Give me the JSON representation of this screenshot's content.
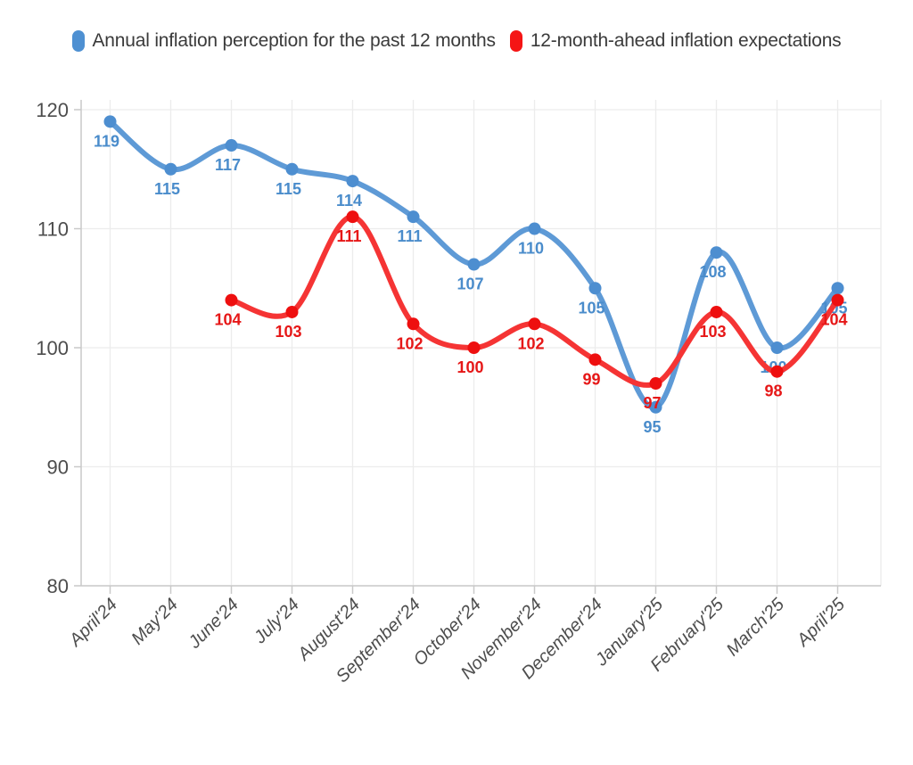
{
  "legend": {
    "items": [
      {
        "label": "Annual inflation perception for the past 12 months",
        "color": "#4e90d2"
      },
      {
        "label": "12-month-ahead inflation expectations",
        "color": "#f51515"
      }
    ]
  },
  "chart_data": {
    "type": "line",
    "title": "",
    "xlabel": "",
    "ylabel": "",
    "categories": [
      "April'24",
      "May'24",
      "June'24",
      "July'24",
      "August'24",
      "September'24",
      "October'24",
      "November'24",
      "December'24",
      "January'25",
      "February'25",
      "March'25",
      "April'25"
    ],
    "series": [
      {
        "name": "Annual inflation perception for the past 12 months",
        "values": [
          119,
          115,
          117,
          115,
          114,
          111,
          107,
          110,
          105,
          95,
          108,
          100,
          105
        ],
        "line_color": "#5e9ad6",
        "point_color": "#4d8ed0",
        "label_color": "#4a8ccb"
      },
      {
        "name": "12-month-ahead inflation expectations",
        "values": [
          null,
          null,
          104,
          103,
          111,
          102,
          100,
          102,
          99,
          97,
          103,
          98,
          104
        ],
        "line_color": "#f53434",
        "point_color": "#ee0f0f",
        "label_color": "#e61717"
      }
    ],
    "ylim": [
      80,
      120
    ],
    "yticks": [
      80,
      90,
      100,
      110,
      120
    ],
    "grid": true,
    "legend_position": "top",
    "smooth_lines": true,
    "point_labels_visible": true
  },
  "palette": {
    "grid": "#ececec",
    "axis": "#c9c9c9",
    "tick_label": "#4d4d4d",
    "legend_text": "#3a3a3a",
    "background": "#ffffff"
  }
}
